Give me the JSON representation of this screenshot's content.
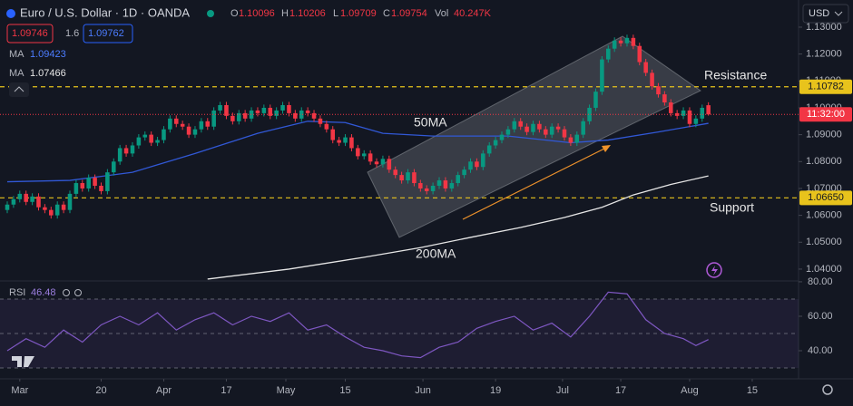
{
  "header": {
    "symbol": "Euro / U.S. Dollar · 1D · OANDA",
    "o": "O",
    "h": "H",
    "l": "L",
    "c": "C",
    "vol_label": "Vol",
    "vol": "40.247K",
    "bid": "1.09746",
    "spread": "1.6",
    "ask": "1.09762",
    "currency": "USD"
  },
  "chart_data": {
    "type": "candlestick",
    "up_color": "#089981",
    "down_color": "#f23645",
    "ohlc": [
      [
        1.062,
        1.0652,
        1.0608,
        1.064
      ],
      [
        1.064,
        1.0672,
        1.0628,
        1.066
      ],
      [
        1.066,
        1.0692,
        1.0648,
        1.068
      ],
      [
        1.068,
        1.0692,
        1.0638,
        1.065
      ],
      [
        1.065,
        1.0682,
        1.0638,
        1.067
      ],
      [
        1.067,
        1.0682,
        1.0618,
        1.063
      ],
      [
        1.063,
        1.0642,
        1.0608,
        1.062
      ],
      [
        1.062,
        1.0632,
        1.0588,
        1.06
      ],
      [
        1.06,
        1.0652,
        1.0588,
        1.064
      ],
      [
        1.064,
        1.0652,
        1.0608,
        1.062
      ],
      [
        1.062,
        1.0692,
        1.0608,
        1.068
      ],
      [
        1.068,
        1.0732,
        1.0668,
        1.072
      ],
      [
        1.072,
        1.0732,
        1.0688,
        1.07
      ],
      [
        1.07,
        1.0752,
        1.0688,
        1.074
      ],
      [
        1.074,
        1.0752,
        1.0698,
        1.071
      ],
      [
        1.071,
        1.0722,
        1.0678,
        1.069
      ],
      [
        1.069,
        1.0772,
        1.0678,
        1.076
      ],
      [
        1.076,
        1.0812,
        1.0748,
        1.08
      ],
      [
        1.08,
        1.0862,
        1.0788,
        1.085
      ],
      [
        1.085,
        1.0862,
        1.0818,
        1.083
      ],
      [
        1.083,
        1.0872,
        1.0818,
        1.086
      ],
      [
        1.086,
        1.0902,
        1.0848,
        1.089
      ],
      [
        1.089,
        1.0912,
        1.0878,
        1.09
      ],
      [
        1.09,
        1.0912,
        1.0858,
        1.087
      ],
      [
        1.087,
        1.0892,
        1.0858,
        1.088
      ],
      [
        1.088,
        1.0932,
        1.0868,
        1.092
      ],
      [
        1.092,
        1.0972,
        1.0908,
        1.096
      ],
      [
        1.096,
        1.0972,
        1.0928,
        1.094
      ],
      [
        1.094,
        1.0952,
        1.0918,
        1.093
      ],
      [
        1.093,
        1.0942,
        1.0888,
        1.09
      ],
      [
        1.09,
        1.0932,
        1.0888,
        1.092
      ],
      [
        1.092,
        1.0962,
        1.0908,
        1.095
      ],
      [
        1.095,
        1.0962,
        1.0918,
        1.093
      ],
      [
        1.093,
        1.1002,
        1.0918,
        1.099
      ],
      [
        1.099,
        1.1022,
        1.0978,
        1.101
      ],
      [
        1.101,
        1.1022,
        1.0958,
        1.097
      ],
      [
        1.097,
        1.0982,
        1.0938,
        1.095
      ],
      [
        1.095,
        1.0992,
        1.0938,
        1.098
      ],
      [
        1.098,
        1.0992,
        1.0948,
        1.096
      ],
      [
        1.096,
        1.1002,
        1.0948,
        1.099
      ],
      [
        1.099,
        1.1002,
        1.0968,
        1.098
      ],
      [
        1.098,
        1.1012,
        1.0968,
        1.1
      ],
      [
        1.1,
        1.1012,
        1.0958,
        1.097
      ],
      [
        1.097,
        1.1002,
        1.0958,
        1.099
      ],
      [
        1.099,
        1.1022,
        1.0978,
        1.101
      ],
      [
        1.101,
        1.1022,
        1.0968,
        1.098
      ],
      [
        1.098,
        1.0992,
        1.0948,
        1.096
      ],
      [
        1.096,
        1.1002,
        1.0948,
        1.099
      ],
      [
        1.099,
        1.1002,
        1.0968,
        1.098
      ],
      [
        1.098,
        1.0992,
        1.0948,
        1.096
      ],
      [
        1.096,
        1.0972,
        1.0928,
        1.094
      ],
      [
        1.094,
        1.0952,
        1.0908,
        1.092
      ],
      [
        1.092,
        1.0932,
        1.0868,
        1.088
      ],
      [
        1.088,
        1.0892,
        1.0858,
        1.087
      ],
      [
        1.087,
        1.0902,
        1.0858,
        1.089
      ],
      [
        1.089,
        1.0902,
        1.0838,
        1.085
      ],
      [
        1.085,
        1.0862,
        1.0808,
        1.082
      ],
      [
        1.082,
        1.0842,
        1.0808,
        1.083
      ],
      [
        1.083,
        1.0842,
        1.0788,
        1.08
      ],
      [
        1.08,
        1.0812,
        1.0778,
        1.079
      ],
      [
        1.079,
        1.0822,
        1.0778,
        1.081
      ],
      [
        1.081,
        1.0822,
        1.0758,
        1.077
      ],
      [
        1.077,
        1.0782,
        1.0738,
        1.075
      ],
      [
        1.075,
        1.0762,
        1.0718,
        1.073
      ],
      [
        1.073,
        1.0772,
        1.0718,
        1.076
      ],
      [
        1.076,
        1.0772,
        1.0708,
        1.072
      ],
      [
        1.072,
        1.0732,
        1.0688,
        1.07
      ],
      [
        1.07,
        1.0712,
        1.0678,
        1.069
      ],
      [
        1.069,
        1.0722,
        1.0678,
        1.071
      ],
      [
        1.071,
        1.0742,
        1.0698,
        1.073
      ],
      [
        1.073,
        1.0742,
        1.0688,
        1.07
      ],
      [
        1.07,
        1.0732,
        1.0688,
        1.072
      ],
      [
        1.072,
        1.0762,
        1.0708,
        1.075
      ],
      [
        1.075,
        1.0782,
        1.0738,
        1.077
      ],
      [
        1.077,
        1.0812,
        1.0758,
        1.08
      ],
      [
        1.08,
        1.0812,
        1.0768,
        1.078
      ],
      [
        1.078,
        1.0842,
        1.0768,
        1.083
      ],
      [
        1.083,
        1.0872,
        1.0818,
        1.086
      ],
      [
        1.086,
        1.0892,
        1.0848,
        1.088
      ],
      [
        1.088,
        1.0912,
        1.0868,
        1.09
      ],
      [
        1.09,
        1.0932,
        1.0888,
        1.092
      ],
      [
        1.092,
        1.0962,
        1.0908,
        1.095
      ],
      [
        1.095,
        1.0962,
        1.0918,
        1.093
      ],
      [
        1.093,
        1.0942,
        1.0898,
        1.091
      ],
      [
        1.091,
        1.0952,
        1.0898,
        1.094
      ],
      [
        1.094,
        1.0952,
        1.0908,
        1.092
      ],
      [
        1.092,
        1.0932,
        1.0888,
        1.09
      ],
      [
        1.09,
        1.0942,
        1.0888,
        1.093
      ],
      [
        1.093,
        1.0942,
        1.0908,
        1.092
      ],
      [
        1.092,
        1.0932,
        1.0878,
        1.089
      ],
      [
        1.089,
        1.0902,
        1.0858,
        1.087
      ],
      [
        1.087,
        1.0912,
        1.0858,
        1.09
      ],
      [
        1.09,
        1.0962,
        1.0888,
        1.095
      ],
      [
        1.095,
        1.1012,
        1.0938,
        1.1
      ],
      [
        1.1,
        1.1072,
        1.0988,
        1.106
      ],
      [
        1.106,
        1.1192,
        1.1048,
        1.118
      ],
      [
        1.118,
        1.1232,
        1.1168,
        1.122
      ],
      [
        1.122,
        1.1262,
        1.1208,
        1.125
      ],
      [
        1.125,
        1.1262,
        1.1228,
        1.124
      ],
      [
        1.124,
        1.1272,
        1.1228,
        1.126
      ],
      [
        1.126,
        1.1272,
        1.1218,
        1.123
      ],
      [
        1.123,
        1.1242,
        1.1158,
        1.117
      ],
      [
        1.117,
        1.1182,
        1.1118,
        1.113
      ],
      [
        1.113,
        1.1142,
        1.1068,
        1.108
      ],
      [
        1.108,
        1.1092,
        1.1038,
        1.105
      ],
      [
        1.105,
        1.1062,
        1.1008,
        1.102
      ],
      [
        1.102,
        1.1032,
        1.0968,
        1.098
      ],
      [
        1.098,
        1.0992,
        1.0958,
        1.097
      ],
      [
        1.097,
        1.1002,
        1.0958,
        1.099
      ],
      [
        1.099,
        1.1002,
        1.0928,
        1.094
      ],
      [
        1.094,
        1.0972,
        1.0928,
        1.096
      ],
      [
        1.096,
        1.1012,
        1.0948,
        1.1
      ],
      [
        1.10096,
        1.10206,
        1.09709,
        1.09754
      ]
    ],
    "xlim": [
      -1.16,
      126.4
    ],
    "xticks": [
      {
        "value": 2,
        "label": "Mar"
      },
      {
        "value": 15,
        "label": "20"
      },
      {
        "value": 25,
        "label": "Apr"
      },
      {
        "value": 35,
        "label": "17"
      },
      {
        "value": 44.5,
        "label": "May"
      },
      {
        "value": 54,
        "label": "15"
      },
      {
        "value": 66.4,
        "label": "Jun"
      },
      {
        "value": 78,
        "label": "19"
      },
      {
        "value": 88.7,
        "label": "Jul"
      },
      {
        "value": 98,
        "label": "17"
      },
      {
        "value": 109,
        "label": "Aug"
      },
      {
        "value": 119,
        "label": "15"
      }
    ],
    "ylim": [
      1.0356,
      1.1401
    ],
    "yticks": [
      {
        "value": 1.04,
        "label": "1.04000"
      },
      {
        "value": 1.05,
        "label": "1.05000"
      },
      {
        "value": 1.06,
        "label": "1.06000"
      },
      {
        "value": 1.07,
        "label": "1.07000"
      },
      {
        "value": 1.08,
        "label": "1.08000"
      },
      {
        "value": 1.09,
        "label": "1.09000"
      },
      {
        "value": 1.1,
        "label": "1.10000"
      },
      {
        "value": 1.11,
        "label": "1.11000"
      },
      {
        "value": 1.12,
        "label": "1.12000"
      },
      {
        "value": 1.13,
        "label": "1.13000"
      }
    ],
    "ma": [
      {
        "name": "MA",
        "color": "#3158d6",
        "x": [
          0,
          10,
          20,
          30,
          40,
          48,
          54,
          60,
          68,
          80,
          90,
          96,
          104,
          112
        ],
        "values": [
          1.0725,
          1.073,
          1.076,
          1.083,
          1.0905,
          1.095,
          1.0945,
          1.0905,
          1.0895,
          1.0895,
          1.087,
          1.088,
          1.091,
          1.09423
        ]
      },
      {
        "name": "MA",
        "color": "#e6e6e6",
        "x": [
          32,
          45,
          57,
          66,
          74,
          82,
          89,
          95,
          100,
          106,
          112
        ],
        "values": [
          1.0363,
          1.04,
          1.0444,
          1.048,
          1.0518,
          1.0555,
          1.0592,
          1.063,
          1.0676,
          1.0715,
          1.07466
        ]
      }
    ],
    "levels": [
      {
        "value": 1.10782,
        "color": "#e8c31c"
      },
      {
        "value": 1.0665,
        "value_label": "1.06650",
        "color": "#e8c31c"
      }
    ],
    "countdown": "11:32:00",
    "annotations": [
      "50MA",
      "200MA",
      "Resistance",
      "Support"
    ],
    "rsi": {
      "name": "RSI",
      "color": "#7e57c2",
      "x": [
        0,
        3,
        6,
        9,
        12,
        15,
        18,
        21,
        24,
        27,
        30,
        33,
        36,
        39,
        42,
        45,
        48,
        51,
        54,
        57,
        60,
        63,
        66,
        69,
        72,
        75,
        78,
        81,
        84,
        87,
        90,
        93,
        96,
        99,
        102,
        105,
        108,
        110,
        112
      ],
      "values": [
        40,
        47,
        42,
        52,
        45,
        55,
        60,
        55,
        62,
        52,
        58,
        62,
        55,
        60,
        57,
        62,
        52,
        55,
        48,
        42,
        40,
        37,
        36,
        42,
        45,
        53,
        57,
        60,
        52,
        56,
        48,
        60,
        74,
        73,
        58,
        50,
        47,
        43,
        46.48
      ],
      "ylim": [
        23.7,
        80.5
      ],
      "yticks": [
        {
          "value": 80,
          "label": "80.00"
        },
        {
          "value": 60,
          "label": "60.00"
        },
        {
          "value": 40,
          "label": "40.00"
        }
      ],
      "levels": [
        70,
        50,
        30
      ]
    }
  }
}
